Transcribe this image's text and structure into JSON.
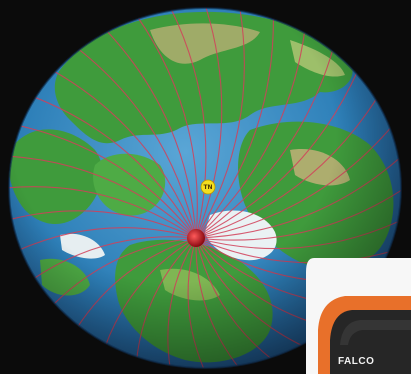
{
  "globe": {
    "marker_label": "TN",
    "colors": {
      "ocean": "#2d7fb8",
      "land": "#3e9a3a",
      "ice": "#eaf2f4",
      "lines": "#d2405a",
      "pole": "#c2141e",
      "marker": "#f4de1e"
    }
  },
  "device": {
    "brand_text": "FALCO",
    "colors": {
      "frame": "#e8702a",
      "body": "#262626"
    }
  }
}
